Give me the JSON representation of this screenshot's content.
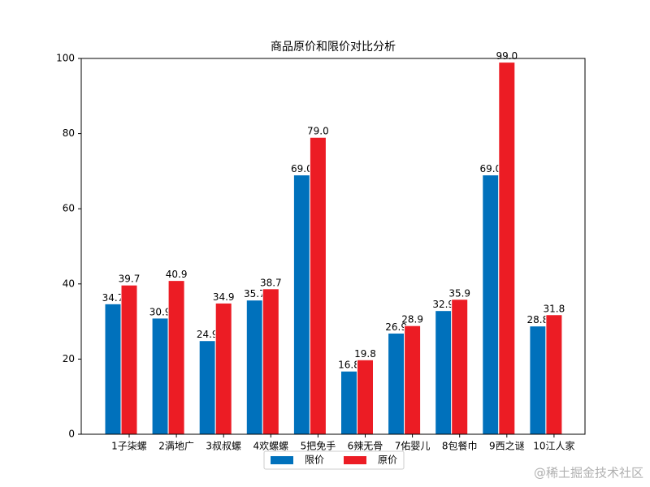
{
  "chart_data": {
    "type": "bar",
    "title": "商品原价和限价对比分析",
    "categories": [
      "1子柒螺",
      "2满地广",
      "3叔叔螺",
      "4欢螺螺",
      "5把免手",
      "6辣无骨",
      "7佑婴儿",
      "8包餐巾",
      "9西之谜",
      "10江人家"
    ],
    "series": [
      {
        "name": "限价",
        "color": "#0071bc",
        "values": [
          34.7,
          30.9,
          24.9,
          35.7,
          69.0,
          16.8,
          26.9,
          32.9,
          69.0,
          28.8
        ],
        "value_labels": [
          "34.7",
          "30.9",
          "24.9",
          "35.7",
          "69.0",
          "16.8",
          "26.9",
          "32.9",
          "69.0",
          "28.8"
        ]
      },
      {
        "name": "原价",
        "color": "#ec1c24",
        "values": [
          39.7,
          40.9,
          34.9,
          38.7,
          79.0,
          19.8,
          28.9,
          35.9,
          99.0,
          31.8
        ],
        "value_labels": [
          "39.7",
          "40.9",
          "34.9",
          "38.7",
          "79.0",
          "19.8",
          "28.9",
          "35.9",
          "99.0",
          "31.8"
        ]
      }
    ],
    "ylim": [
      0,
      100
    ],
    "yticks": [
      0,
      20,
      40,
      60,
      80,
      100
    ],
    "grid": false,
    "legend": "bottom",
    "watermark": "@稀土掘金技术社区"
  }
}
